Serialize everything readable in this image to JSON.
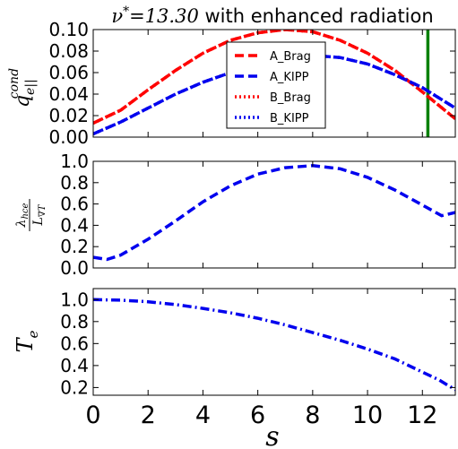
{
  "title": {
    "prefix": "ν",
    "sup": "*",
    "eq": "=13.30",
    "rest": " with enhanced radiation"
  },
  "xlabel": "s",
  "x_ticks": [
    "0",
    "2",
    "4",
    "6",
    "8",
    "10",
    "12"
  ],
  "colors": {
    "red": "#ff0000",
    "blue": "#0000ee",
    "green": "#008000"
  },
  "chart_data": [
    {
      "type": "line",
      "panel": "top",
      "ylabel": {
        "base": "q",
        "sub": "e||",
        "sup": "cond"
      },
      "xlim": [
        0,
        13.2
      ],
      "ylim": [
        0,
        0.1
      ],
      "y_ticks": [
        "0.00",
        "0.02",
        "0.04",
        "0.06",
        "0.08",
        "0.10"
      ],
      "vline": {
        "x": 12.2,
        "color": "#008000"
      },
      "legend": {
        "placement": "center"
      },
      "series": [
        {
          "name": "A_Brag",
          "color": "#ff0000",
          "style": "dashed",
          "x": [
            0,
            1,
            2,
            3,
            4,
            5,
            6,
            7,
            8,
            9,
            10,
            11,
            12,
            13.2
          ],
          "y": [
            0.013,
            0.025,
            0.044,
            0.062,
            0.078,
            0.09,
            0.097,
            0.1,
            0.098,
            0.09,
            0.078,
            0.062,
            0.042,
            0.017
          ]
        },
        {
          "name": "A_KIPP",
          "color": "#0000ee",
          "style": "dashed",
          "x": [
            0,
            1,
            2,
            3,
            4,
            5,
            6,
            7,
            8,
            9,
            10,
            11,
            12,
            13.2
          ],
          "y": [
            0.003,
            0.014,
            0.027,
            0.04,
            0.051,
            0.06,
            0.067,
            0.073,
            0.076,
            0.074,
            0.068,
            0.058,
            0.046,
            0.027
          ]
        },
        {
          "name": "B_Brag",
          "color": "#ff0000",
          "style": "dotted",
          "x": [
            0,
            1,
            2,
            3,
            4,
            5,
            6,
            7,
            8,
            9,
            10,
            11,
            12,
            13.2
          ],
          "y": [
            0.013,
            0.025,
            0.044,
            0.062,
            0.078,
            0.09,
            0.097,
            0.1,
            0.098,
            0.09,
            0.078,
            0.062,
            0.042,
            0.017
          ]
        },
        {
          "name": "B_KIPP",
          "color": "#0000ee",
          "style": "dotted",
          "x": [
            0,
            1,
            2,
            3,
            4,
            5,
            6,
            7,
            8,
            9,
            10,
            11,
            12,
            13.2
          ],
          "y": [
            0.003,
            0.014,
            0.027,
            0.04,
            0.051,
            0.06,
            0.067,
            0.073,
            0.076,
            0.074,
            0.068,
            0.058,
            0.046,
            0.027
          ]
        }
      ]
    },
    {
      "type": "line",
      "panel": "middle",
      "ylabel": {
        "num": "λ",
        "num_sub": "hce",
        "den": "L",
        "den_sub": "∇T"
      },
      "xlim": [
        0,
        13.2
      ],
      "ylim": [
        0,
        1.0
      ],
      "y_ticks": [
        "0.0",
        "0.2",
        "0.4",
        "0.6",
        "0.8",
        "1.0"
      ],
      "series": [
        {
          "color": "#0000ee",
          "style": "dashed",
          "x": [
            0,
            0.5,
            1,
            2,
            3,
            4,
            5,
            6,
            7,
            8,
            9,
            10,
            11,
            12,
            12.7,
            13.2
          ],
          "y": [
            0.1,
            0.08,
            0.12,
            0.27,
            0.44,
            0.62,
            0.77,
            0.88,
            0.94,
            0.96,
            0.93,
            0.85,
            0.73,
            0.59,
            0.49,
            0.52
          ]
        }
      ]
    },
    {
      "type": "line",
      "panel": "bottom",
      "ylabel": {
        "base": "T",
        "sub": "e"
      },
      "xlim": [
        0,
        13.2
      ],
      "ylim": [
        0.13,
        1.1
      ],
      "y_ticks": [
        "0.2",
        "0.4",
        "0.6",
        "0.8",
        "1.0"
      ],
      "series": [
        {
          "color": "#0000ee",
          "style": "dashdot",
          "x": [
            0,
            1,
            2,
            3,
            4,
            5,
            6,
            7,
            8,
            9,
            10,
            11,
            12,
            12.6,
            13.2
          ],
          "y": [
            1.0,
            0.995,
            0.98,
            0.955,
            0.92,
            0.88,
            0.83,
            0.77,
            0.7,
            0.63,
            0.55,
            0.46,
            0.34,
            0.27,
            0.18
          ]
        }
      ]
    }
  ]
}
